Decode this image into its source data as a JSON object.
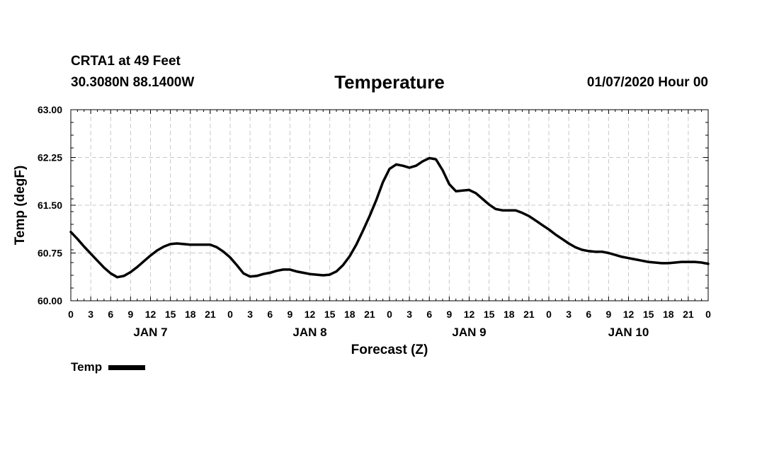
{
  "chart_data": {
    "type": "line",
    "header": {
      "station": "CRTA1 at 49 Feet",
      "coords": "30.3080N 88.1400W",
      "title": "Temperature",
      "issued": "01/07/2020 Hour 00"
    },
    "ylabel": "Temp (degF)",
    "xlabel": "Forecast (Z)",
    "ylim": [
      60.0,
      63.0
    ],
    "yticks": [
      "60.00",
      "60.75",
      "61.50",
      "62.25",
      "63.00"
    ],
    "x_range_hours": [
      0,
      96
    ],
    "x_tick_step_hours": 3,
    "xtick_labels": [
      "0",
      "3",
      "6",
      "9",
      "12",
      "15",
      "18",
      "21",
      "0",
      "3",
      "6",
      "9",
      "12",
      "15",
      "18",
      "21",
      "0",
      "3",
      "6",
      "9",
      "12",
      "15",
      "18",
      "21",
      "0",
      "3",
      "6",
      "9",
      "12",
      "15",
      "18",
      "21",
      "0"
    ],
    "day_labels": [
      {
        "label": "JAN 7",
        "hour": 12
      },
      {
        "label": "JAN 8",
        "hour": 36
      },
      {
        "label": "JAN 9",
        "hour": 60
      },
      {
        "label": "JAN 10",
        "hour": 84
      }
    ],
    "grid": true,
    "legend": {
      "label": "Temp",
      "position": "bottom-left"
    },
    "series": [
      {
        "name": "Temp",
        "color": "#000000",
        "x": [
          0,
          1,
          2,
          3,
          4,
          5,
          6,
          7,
          8,
          9,
          10,
          11,
          12,
          13,
          14,
          15,
          16,
          17,
          18,
          19,
          20,
          21,
          22,
          23,
          24,
          25,
          26,
          27,
          28,
          29,
          30,
          31,
          32,
          33,
          34,
          35,
          36,
          37,
          38,
          39,
          40,
          41,
          42,
          43,
          44,
          45,
          46,
          47,
          48,
          49,
          50,
          51,
          52,
          53,
          54,
          55,
          56,
          57,
          58,
          59,
          60,
          61,
          62,
          63,
          64,
          65,
          66,
          67,
          68,
          69,
          70,
          71,
          72,
          73,
          74,
          75,
          76,
          77,
          78,
          79,
          80,
          81,
          82,
          83,
          84,
          85,
          86,
          87,
          88,
          89,
          90,
          91,
          92,
          93,
          94,
          95,
          96
        ],
        "values": [
          61.08,
          60.97,
          60.85,
          60.74,
          60.63,
          60.52,
          60.43,
          60.37,
          60.39,
          60.45,
          60.53,
          60.62,
          60.71,
          60.79,
          60.85,
          60.89,
          60.9,
          60.89,
          60.88,
          60.88,
          60.88,
          60.88,
          60.84,
          60.77,
          60.68,
          60.56,
          60.43,
          60.38,
          60.39,
          60.42,
          60.44,
          60.47,
          60.49,
          60.49,
          60.46,
          60.44,
          60.42,
          60.41,
          60.4,
          60.41,
          60.46,
          60.56,
          60.7,
          60.88,
          61.1,
          61.33,
          61.58,
          61.86,
          62.07,
          62.14,
          62.12,
          62.09,
          62.12,
          62.19,
          62.24,
          62.22,
          62.05,
          61.83,
          61.72,
          61.73,
          61.74,
          61.69,
          61.6,
          61.51,
          61.44,
          61.42,
          61.42,
          61.42,
          61.38,
          61.33,
          61.26,
          61.19,
          61.12,
          61.04,
          60.97,
          60.9,
          60.84,
          60.8,
          60.78,
          60.77,
          60.77,
          60.75,
          60.72,
          60.69,
          60.67,
          60.65,
          60.63,
          60.61,
          60.6,
          60.59,
          60.59,
          60.6,
          60.61,
          60.61,
          60.61,
          60.6,
          60.58
        ]
      }
    ]
  }
}
